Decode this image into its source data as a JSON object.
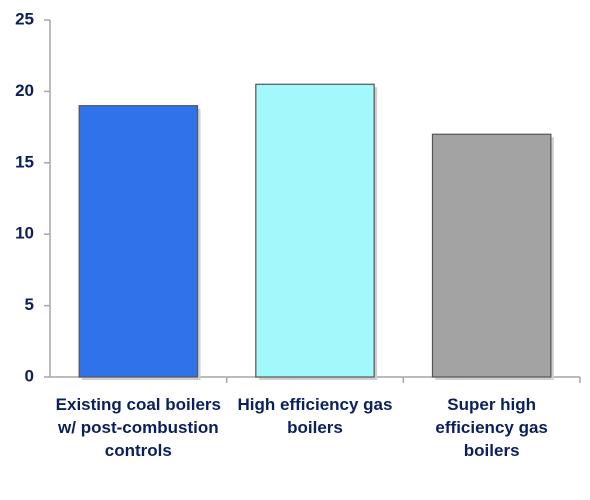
{
  "chart_data": {
    "type": "bar",
    "categories": [
      "Existing coal boilers w/ post-combustion controls",
      "High efficiency gas boilers",
      "Super high efficiency gas boilers"
    ],
    "values": [
      19,
      20.5,
      17
    ],
    "colors": [
      "#2f72ea",
      "#a3f8fc",
      "#a3a3a3"
    ],
    "ylim": [
      0,
      25
    ],
    "yticks": [
      0,
      5,
      10,
      15,
      20,
      25
    ],
    "grid": false
  }
}
